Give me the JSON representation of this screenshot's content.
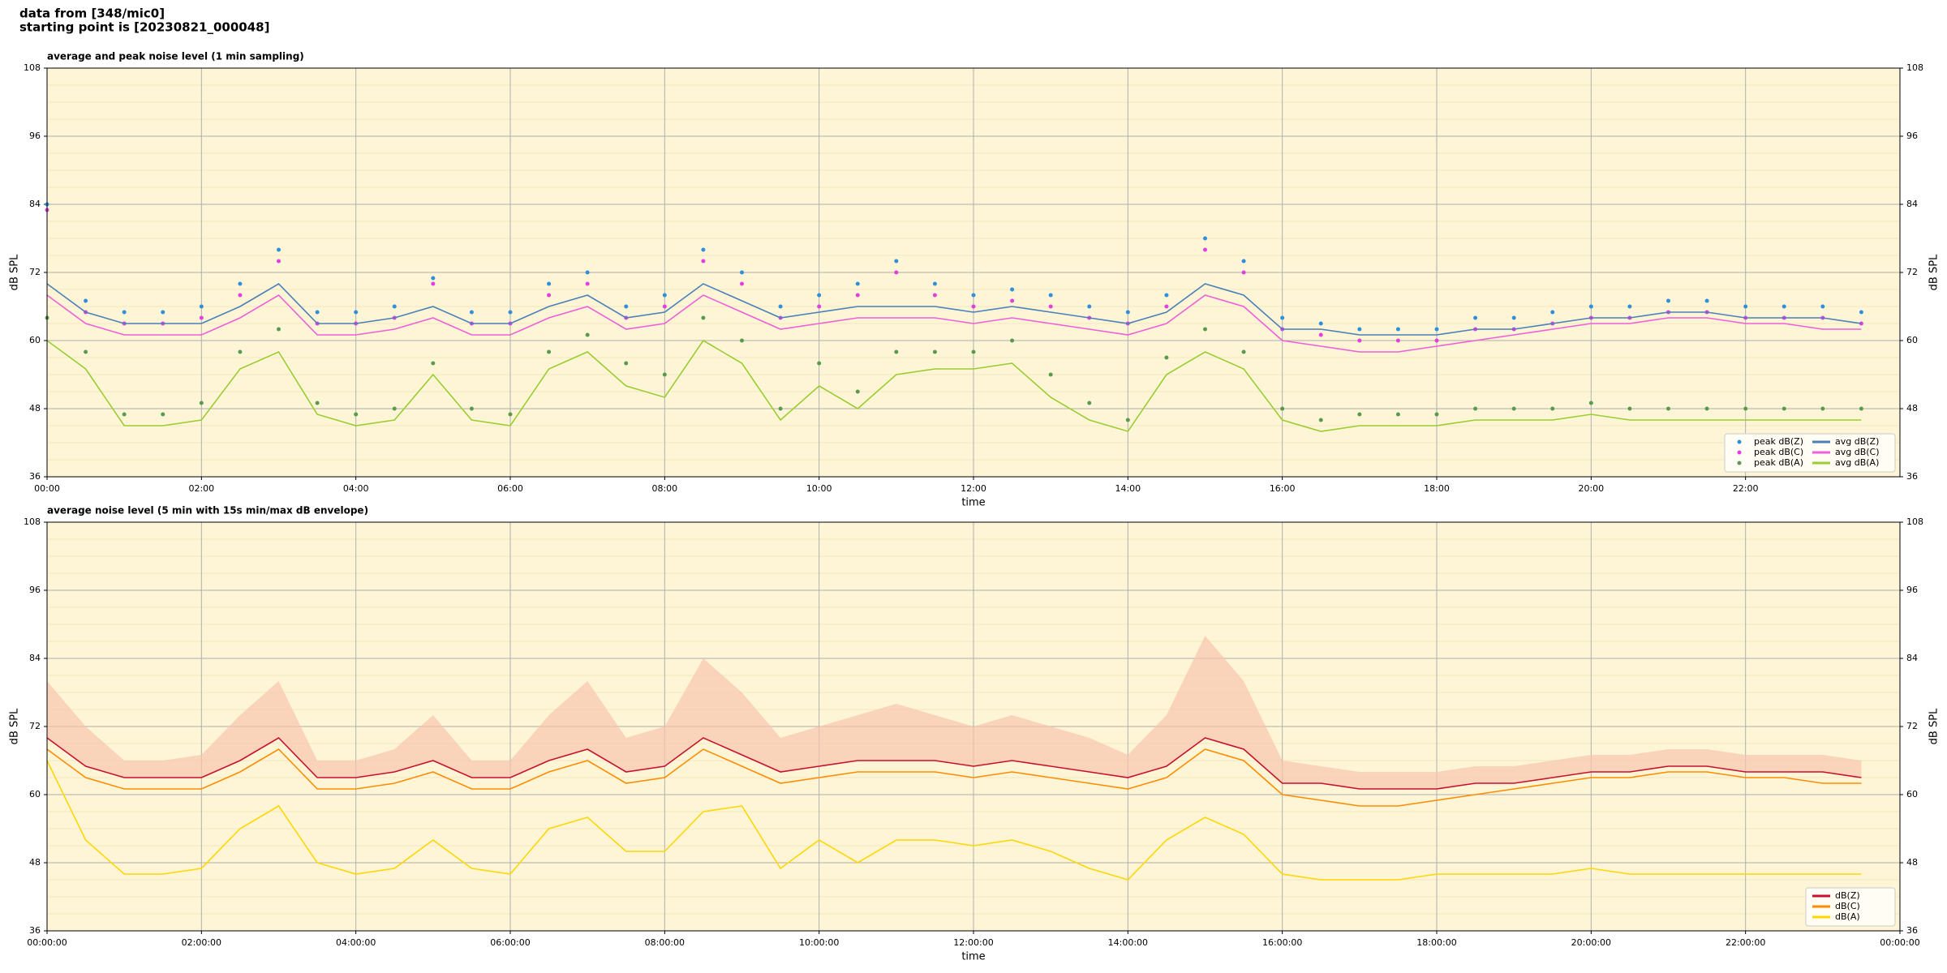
{
  "header": [
    "data from [348/mic0]",
    "starting point is [20230821_000048]"
  ],
  "chart_data": [
    {
      "type": "line",
      "title": "average and peak noise level (1 min sampling)",
      "xlabel": "time",
      "ylabel": "dB SPL",
      "x": [
        0,
        0.5,
        1,
        1.5,
        2,
        2.5,
        3,
        3.5,
        4,
        4.5,
        5,
        5.5,
        6,
        6.5,
        7,
        7.5,
        8,
        8.5,
        9,
        9.5,
        10,
        10.5,
        11,
        11.5,
        12,
        12.5,
        13,
        13.5,
        14,
        14.5,
        15,
        15.5,
        16,
        16.5,
        17,
        17.5,
        18,
        18.5,
        19,
        19.5,
        20,
        20.5,
        21,
        21.5,
        22,
        22.5,
        23,
        23.5
      ],
      "xlim": [
        0,
        24
      ],
      "xticks": [
        {
          "value": 0,
          "label": "00:00"
        },
        {
          "value": 2,
          "label": "02:00"
        },
        {
          "value": 4,
          "label": "04:00"
        },
        {
          "value": 6,
          "label": "06:00"
        },
        {
          "value": 8,
          "label": "08:00"
        },
        {
          "value": 10,
          "label": "10:00"
        },
        {
          "value": 12,
          "label": "12:00"
        },
        {
          "value": 14,
          "label": "14:00"
        },
        {
          "value": 16,
          "label": "16:00"
        },
        {
          "value": 18,
          "label": "18:00"
        },
        {
          "value": 20,
          "label": "20:00"
        },
        {
          "value": 22,
          "label": "22:00"
        }
      ],
      "ylim": [
        36,
        108
      ],
      "yticks": [
        36,
        48,
        60,
        72,
        84,
        96,
        108
      ],
      "grid": true,
      "legend": "lower right",
      "legend_columns": 2,
      "series": [
        {
          "name": "peak dB(Z)",
          "style": "dots",
          "color": "#2f8fdc",
          "values": [
            84,
            67,
            65,
            65,
            66,
            70,
            76,
            65,
            65,
            66,
            71,
            65,
            65,
            70,
            72,
            66,
            68,
            76,
            72,
            66,
            68,
            70,
            74,
            70,
            68,
            69,
            68,
            66,
            65,
            68,
            78,
            74,
            64,
            63,
            62,
            62,
            62,
            64,
            64,
            65,
            66,
            66,
            67,
            67,
            66,
            66,
            66,
            65
          ]
        },
        {
          "name": "peak dB(C)",
          "style": "dots",
          "color": "#e23ee0",
          "values": [
            83,
            65,
            63,
            63,
            64,
            68,
            74,
            63,
            63,
            64,
            70,
            63,
            63,
            68,
            70,
            64,
            66,
            74,
            70,
            64,
            66,
            68,
            72,
            68,
            66,
            67,
            66,
            64,
            63,
            66,
            76,
            72,
            62,
            61,
            60,
            60,
            60,
            62,
            62,
            63,
            64,
            64,
            65,
            65,
            64,
            64,
            64,
            63
          ]
        },
        {
          "name": "peak dB(A)",
          "style": "dots",
          "color": "#5a9a50",
          "values": [
            64,
            58,
            47,
            47,
            49,
            58,
            62,
            49,
            47,
            48,
            56,
            48,
            47,
            58,
            61,
            56,
            54,
            64,
            60,
            48,
            56,
            51,
            58,
            58,
            58,
            60,
            54,
            49,
            46,
            57,
            62,
            58,
            48,
            46,
            47,
            47,
            47,
            48,
            48,
            48,
            49,
            48,
            48,
            48,
            48,
            48,
            48,
            48
          ]
        },
        {
          "name": "avg dB(Z)",
          "style": "line",
          "color": "#4a7fb8",
          "values": [
            70,
            65,
            63,
            63,
            63,
            66,
            70,
            63,
            63,
            64,
            66,
            63,
            63,
            66,
            68,
            64,
            65,
            70,
            67,
            64,
            65,
            66,
            66,
            66,
            65,
            66,
            65,
            64,
            63,
            65,
            70,
            68,
            62,
            62,
            61,
            61,
            61,
            62,
            62,
            63,
            64,
            64,
            65,
            65,
            64,
            64,
            64,
            63
          ]
        },
        {
          "name": "avg dB(C)",
          "style": "line",
          "color": "#ee5fd8",
          "values": [
            68,
            63,
            61,
            61,
            61,
            64,
            68,
            61,
            61,
            62,
            64,
            61,
            61,
            64,
            66,
            62,
            63,
            68,
            65,
            62,
            63,
            64,
            64,
            64,
            63,
            64,
            63,
            62,
            61,
            63,
            68,
            66,
            60,
            59,
            58,
            58,
            59,
            60,
            61,
            62,
            63,
            63,
            64,
            64,
            63,
            63,
            62,
            62
          ]
        },
        {
          "name": "avg dB(A)",
          "style": "line",
          "color": "#9acd32",
          "values": [
            60,
            55,
            45,
            45,
            46,
            55,
            58,
            47,
            45,
            46,
            54,
            46,
            45,
            55,
            58,
            52,
            50,
            60,
            56,
            46,
            52,
            48,
            54,
            55,
            55,
            56,
            50,
            46,
            44,
            54,
            58,
            55,
            46,
            44,
            45,
            45,
            45,
            46,
            46,
            46,
            47,
            46,
            46,
            46,
            46,
            46,
            46,
            46
          ]
        }
      ]
    },
    {
      "type": "line",
      "title": "average noise level (5 min with 15s min/max dB envelope)",
      "xlabel": "time",
      "ylabel": "dB SPL",
      "x": [
        0,
        0.5,
        1,
        1.5,
        2,
        2.5,
        3,
        3.5,
        4,
        4.5,
        5,
        5.5,
        6,
        6.5,
        7,
        7.5,
        8,
        8.5,
        9,
        9.5,
        10,
        10.5,
        11,
        11.5,
        12,
        12.5,
        13,
        13.5,
        14,
        14.5,
        15,
        15.5,
        16,
        16.5,
        17,
        17.5,
        18,
        18.5,
        19,
        19.5,
        20,
        20.5,
        21,
        21.5,
        22,
        22.5,
        23,
        23.5
      ],
      "xlim": [
        0,
        24
      ],
      "xticks": [
        {
          "value": 0,
          "label": "00:00:00"
        },
        {
          "value": 2,
          "label": "02:00:00"
        },
        {
          "value": 4,
          "label": "04:00:00"
        },
        {
          "value": 6,
          "label": "06:00:00"
        },
        {
          "value": 8,
          "label": "08:00:00"
        },
        {
          "value": 10,
          "label": "10:00:00"
        },
        {
          "value": 12,
          "label": "12:00:00"
        },
        {
          "value": 14,
          "label": "14:00:00"
        },
        {
          "value": 16,
          "label": "16:00:00"
        },
        {
          "value": 18,
          "label": "18:00:00"
        },
        {
          "value": 20,
          "label": "20:00:00"
        },
        {
          "value": 22,
          "label": "22:00:00"
        },
        {
          "value": 24,
          "label": "00:00:00"
        }
      ],
      "ylim": [
        36,
        108
      ],
      "yticks": [
        36,
        48,
        60,
        72,
        84,
        96,
        108
      ],
      "grid": true,
      "legend": "lower right",
      "legend_columns": 1,
      "envelope": {
        "color": "#f6c4ae",
        "max": [
          80,
          72,
          66,
          66,
          67,
          74,
          80,
          66,
          66,
          68,
          74,
          66,
          66,
          74,
          80,
          70,
          72,
          84,
          78,
          70,
          72,
          74,
          76,
          74,
          72,
          74,
          72,
          70,
          67,
          74,
          88,
          80,
          66,
          65,
          64,
          64,
          64,
          65,
          65,
          66,
          67,
          67,
          68,
          68,
          67,
          67,
          67,
          66
        ]
      },
      "series": [
        {
          "name": "dB(Z)",
          "style": "line",
          "color": "#c8102e",
          "values": [
            70,
            65,
            63,
            63,
            63,
            66,
            70,
            63,
            63,
            64,
            66,
            63,
            63,
            66,
            68,
            64,
            65,
            70,
            67,
            64,
            65,
            66,
            66,
            66,
            65,
            66,
            65,
            64,
            63,
            65,
            70,
            68,
            62,
            62,
            61,
            61,
            61,
            62,
            62,
            63,
            64,
            64,
            65,
            65,
            64,
            64,
            64,
            63
          ]
        },
        {
          "name": "dB(C)",
          "style": "line",
          "color": "#ff8c00",
          "values": [
            68,
            63,
            61,
            61,
            61,
            64,
            68,
            61,
            61,
            62,
            64,
            61,
            61,
            64,
            66,
            62,
            63,
            68,
            65,
            62,
            63,
            64,
            64,
            64,
            63,
            64,
            63,
            62,
            61,
            63,
            68,
            66,
            60,
            59,
            58,
            58,
            59,
            60,
            61,
            62,
            63,
            63,
            64,
            64,
            63,
            63,
            62,
            62
          ]
        },
        {
          "name": "dB(A)",
          "style": "line",
          "color": "#ffd700",
          "values": [
            66,
            52,
            46,
            46,
            47,
            54,
            58,
            48,
            46,
            47,
            52,
            47,
            46,
            54,
            56,
            50,
            50,
            57,
            58,
            47,
            52,
            48,
            52,
            52,
            51,
            52,
            50,
            47,
            45,
            52,
            56,
            53,
            46,
            45,
            45,
            45,
            46,
            46,
            46,
            46,
            47,
            46,
            46,
            46,
            46,
            46,
            46,
            46
          ]
        }
      ]
    }
  ]
}
